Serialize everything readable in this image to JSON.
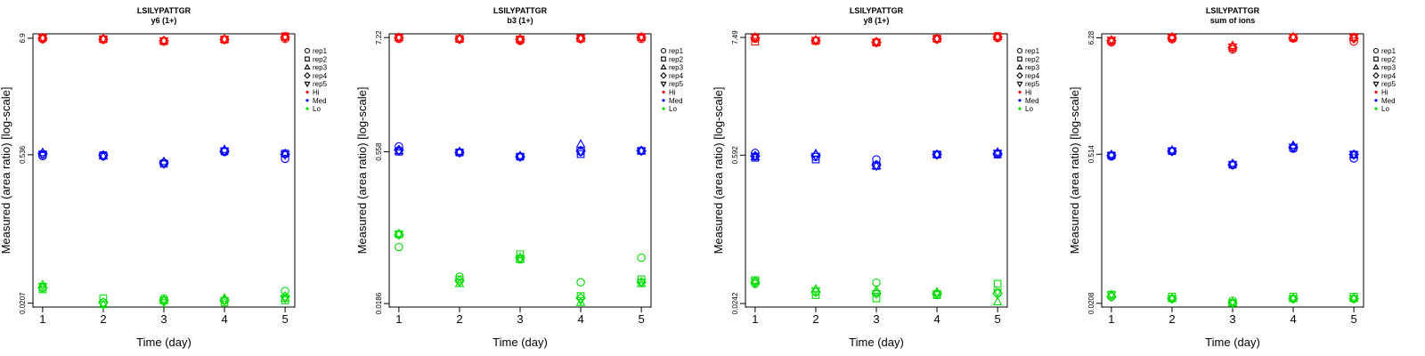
{
  "colors": {
    "Hi": "#ff0000",
    "Med": "#0000ff",
    "Lo": "#00dd00"
  },
  "legend": {
    "reps": [
      {
        "label": "rep1",
        "marker": "circle"
      },
      {
        "label": "rep2",
        "marker": "square"
      },
      {
        "label": "rep3",
        "marker": "triangle"
      },
      {
        "label": "rep4",
        "marker": "diamond"
      },
      {
        "label": "rep5",
        "marker": "triangle-down"
      }
    ],
    "levels": [
      {
        "label": "Hi",
        "color": "#ff0000"
      },
      {
        "label": "Med",
        "color": "#0000ff"
      },
      {
        "label": "Lo",
        "color": "#00dd00"
      }
    ]
  },
  "chart_data": [
    {
      "type": "scatter",
      "title": "LSILYPATTGR",
      "subtitle": "y6 (1+)",
      "xlabel": "Time (day)",
      "ylabel": "Measured (area ratio) [log-scale]",
      "x": [
        1,
        2,
        3,
        4,
        5
      ],
      "xticks": [
        "1",
        "2",
        "3",
        "4",
        "5"
      ],
      "ylim": [
        0.019,
        7.6
      ],
      "yticks": [
        0.0207,
        0.536,
        6.9
      ],
      "ytick_labels": [
        "0.0207",
        "0.536",
        "6.9"
      ],
      "series": [
        {
          "level": "Hi",
          "rep": "rep1",
          "values": [
            6.75,
            6.7,
            6.5,
            6.7,
            6.8
          ]
        },
        {
          "level": "Hi",
          "rep": "rep2",
          "values": [
            7.0,
            6.75,
            6.45,
            6.7,
            7.2
          ]
        },
        {
          "level": "Hi",
          "rep": "rep3",
          "values": [
            6.95,
            6.8,
            6.55,
            6.75,
            7.1
          ]
        },
        {
          "level": "Hi",
          "rep": "rep4",
          "values": [
            6.9,
            6.75,
            6.5,
            6.7,
            7.05
          ]
        },
        {
          "level": "Hi",
          "rep": "rep5",
          "values": [
            6.95,
            6.8,
            6.5,
            6.75,
            7.1
          ]
        },
        {
          "level": "Med",
          "rep": "rep1",
          "values": [
            0.52,
            0.52,
            0.45,
            0.57,
            0.49
          ]
        },
        {
          "level": "Med",
          "rep": "rep2",
          "values": [
            0.54,
            0.53,
            0.44,
            0.58,
            0.55
          ]
        },
        {
          "level": "Med",
          "rep": "rep3",
          "values": [
            0.56,
            0.52,
            0.46,
            0.6,
            0.55
          ]
        },
        {
          "level": "Med",
          "rep": "rep4",
          "values": [
            0.55,
            0.53,
            0.45,
            0.58,
            0.54
          ]
        },
        {
          "level": "Med",
          "rep": "rep5",
          "values": [
            0.54,
            0.52,
            0.44,
            0.58,
            0.54
          ]
        },
        {
          "level": "Lo",
          "rep": "rep1",
          "values": [
            0.029,
            0.021,
            0.023,
            0.022,
            0.027
          ]
        },
        {
          "level": "Lo",
          "rep": "rep2",
          "values": [
            0.028,
            0.023,
            0.022,
            0.021,
            0.022
          ]
        },
        {
          "level": "Lo",
          "rep": "rep3",
          "values": [
            0.031,
            0.02,
            0.022,
            0.023,
            0.023
          ]
        },
        {
          "level": "Lo",
          "rep": "rep4",
          "values": [
            0.029,
            0.021,
            0.022,
            0.022,
            0.024
          ]
        },
        {
          "level": "Lo",
          "rep": "rep5",
          "values": [
            0.03,
            0.02,
            0.021,
            0.022,
            0.023
          ]
        }
      ]
    },
    {
      "type": "scatter",
      "title": "LSILYPATTGR",
      "subtitle": "b3 (1+)",
      "xlabel": "Time (day)",
      "ylabel": "Measured (area ratio) [log-scale]",
      "x": [
        1,
        2,
        3,
        4,
        5
      ],
      "xticks": [
        "1",
        "2",
        "3",
        "4",
        "5"
      ],
      "ylim": [
        0.0172,
        7.85
      ],
      "yticks": [
        0.0186,
        0.558,
        7.22
      ],
      "ytick_labels": [
        "0.0186",
        "0.558",
        "7.22"
      ],
      "series": [
        {
          "level": "Hi",
          "rep": "rep1",
          "values": [
            7.0,
            6.95,
            6.7,
            7.0,
            7.0
          ]
        },
        {
          "level": "Hi",
          "rep": "rep2",
          "values": [
            7.2,
            7.0,
            6.9,
            7.1,
            7.3
          ]
        },
        {
          "level": "Hi",
          "rep": "rep3",
          "values": [
            7.25,
            7.05,
            7.0,
            7.1,
            7.3
          ]
        },
        {
          "level": "Hi",
          "rep": "rep4",
          "values": [
            7.2,
            7.0,
            6.9,
            7.05,
            7.25
          ]
        },
        {
          "level": "Hi",
          "rep": "rep5",
          "values": [
            7.25,
            7.05,
            6.95,
            7.1,
            7.3
          ]
        },
        {
          "level": "Med",
          "rep": "rep1",
          "values": [
            0.63,
            0.55,
            0.5,
            0.56,
            0.57
          ]
        },
        {
          "level": "Med",
          "rep": "rep2",
          "values": [
            0.56,
            0.55,
            0.5,
            0.53,
            0.57
          ]
        },
        {
          "level": "Med",
          "rep": "rep3",
          "values": [
            0.57,
            0.56,
            0.51,
            0.66,
            0.57
          ]
        },
        {
          "level": "Med",
          "rep": "rep4",
          "values": [
            0.58,
            0.55,
            0.5,
            0.57,
            0.57
          ]
        },
        {
          "level": "Med",
          "rep": "rep5",
          "values": [
            0.57,
            0.55,
            0.5,
            0.56,
            0.57
          ]
        },
        {
          "level": "Lo",
          "rep": "rep1",
          "values": [
            0.066,
            0.034,
            0.05,
            0.03,
            0.052
          ]
        },
        {
          "level": "Lo",
          "rep": "rep2",
          "values": [
            0.088,
            0.032,
            0.056,
            0.022,
            0.032
          ]
        },
        {
          "level": "Lo",
          "rep": "rep3",
          "values": [
            0.089,
            0.029,
            0.05,
            0.019,
            0.029
          ]
        },
        {
          "level": "Lo",
          "rep": "rep4",
          "values": [
            0.087,
            0.031,
            0.052,
            0.021,
            0.03
          ]
        },
        {
          "level": "Lo",
          "rep": "rep5",
          "values": [
            0.088,
            0.03,
            0.051,
            0.02,
            0.03
          ]
        }
      ]
    },
    {
      "type": "scatter",
      "title": "LSILYPATTGR",
      "subtitle": "y8 (1+)",
      "xlabel": "Time (day)",
      "ylabel": "Measured (area ratio) [log-scale]",
      "x": [
        1,
        2,
        3,
        4,
        5
      ],
      "xticks": [
        "1",
        "2",
        "3",
        "4",
        "5"
      ],
      "ylim": [
        0.0224,
        8.1
      ],
      "yticks": [
        0.0242,
        0.592,
        7.49
      ],
      "ytick_labels": [
        "0.0242",
        "0.592",
        "7.49"
      ],
      "series": [
        {
          "level": "Hi",
          "rep": "rep1",
          "values": [
            7.3,
            7.0,
            6.8,
            7.2,
            7.4
          ]
        },
        {
          "level": "Hi",
          "rep": "rep2",
          "values": [
            6.85,
            6.95,
            6.7,
            7.3,
            7.7
          ]
        },
        {
          "level": "Hi",
          "rep": "rep3",
          "values": [
            7.55,
            7.1,
            6.8,
            7.3,
            7.6
          ]
        },
        {
          "level": "Hi",
          "rep": "rep4",
          "values": [
            7.4,
            7.0,
            6.75,
            7.25,
            7.55
          ]
        },
        {
          "level": "Hi",
          "rep": "rep5",
          "values": [
            7.5,
            7.05,
            6.8,
            7.3,
            7.6
          ]
        },
        {
          "level": "Med",
          "rep": "rep1",
          "values": [
            0.62,
            0.57,
            0.54,
            0.6,
            0.61
          ]
        },
        {
          "level": "Med",
          "rep": "rep2",
          "values": [
            0.56,
            0.54,
            0.47,
            0.6,
            0.6
          ]
        },
        {
          "level": "Med",
          "rep": "rep3",
          "values": [
            0.57,
            0.61,
            0.47,
            0.6,
            0.63
          ]
        },
        {
          "level": "Med",
          "rep": "rep4",
          "values": [
            0.58,
            0.59,
            0.48,
            0.6,
            0.61
          ]
        },
        {
          "level": "Med",
          "rep": "rep5",
          "values": [
            0.58,
            0.58,
            0.47,
            0.6,
            0.62
          ]
        },
        {
          "level": "Lo",
          "rep": "rep1",
          "values": [
            0.037,
            0.031,
            0.038,
            0.029,
            0.03
          ]
        },
        {
          "level": "Lo",
          "rep": "rep2",
          "values": [
            0.04,
            0.029,
            0.027,
            0.029,
            0.037
          ]
        },
        {
          "level": "Lo",
          "rep": "rep3",
          "values": [
            0.039,
            0.033,
            0.032,
            0.031,
            0.025
          ]
        },
        {
          "level": "Lo",
          "rep": "rep4",
          "values": [
            0.038,
            0.031,
            0.03,
            0.03,
            0.03
          ]
        },
        {
          "level": "Lo",
          "rep": "rep5",
          "values": [
            0.039,
            0.032,
            0.03,
            0.03,
            0.031
          ]
        }
      ]
    },
    {
      "type": "scatter",
      "title": "LSILYPATTGR",
      "subtitle": "sum of ions",
      "xlabel": "Time (day)",
      "ylabel": "Measured (area ratio) [log-scale]",
      "x": [
        1,
        2,
        3,
        4,
        5
      ],
      "xticks": [
        "1",
        "2",
        "3",
        "4",
        "5"
      ],
      "ylim": [
        0.0192,
        6.85
      ],
      "yticks": [
        0.0208,
        0.514,
        6.28
      ],
      "ytick_labels": [
        "0.0208",
        "0.514",
        "6.28"
      ],
      "series": [
        {
          "level": "Hi",
          "rep": "rep1",
          "values": [
            5.7,
            6.1,
            4.9,
            6.2,
            5.8
          ]
        },
        {
          "level": "Hi",
          "rep": "rep2",
          "values": [
            5.9,
            6.3,
            5.1,
            6.3,
            6.4
          ]
        },
        {
          "level": "Hi",
          "rep": "rep3",
          "values": [
            6.0,
            6.4,
            5.3,
            6.4,
            6.3
          ]
        },
        {
          "level": "Hi",
          "rep": "rep4",
          "values": [
            5.9,
            6.3,
            5.1,
            6.3,
            6.2
          ]
        },
        {
          "level": "Hi",
          "rep": "rep5",
          "values": [
            6.0,
            6.3,
            5.2,
            6.4,
            6.3
          ]
        },
        {
          "level": "Med",
          "rep": "rep1",
          "values": [
            0.49,
            0.55,
            0.41,
            0.58,
            0.47
          ]
        },
        {
          "level": "Med",
          "rep": "rep2",
          "values": [
            0.5,
            0.55,
            0.41,
            0.59,
            0.51
          ]
        },
        {
          "level": "Med",
          "rep": "rep3",
          "values": [
            0.51,
            0.56,
            0.42,
            0.62,
            0.51
          ]
        },
        {
          "level": "Med",
          "rep": "rep4",
          "values": [
            0.5,
            0.55,
            0.41,
            0.6,
            0.51
          ]
        },
        {
          "level": "Med",
          "rep": "rep5",
          "values": [
            0.5,
            0.55,
            0.41,
            0.6,
            0.51
          ]
        },
        {
          "level": "Lo",
          "rep": "rep1",
          "values": [
            0.024,
            0.023,
            0.022,
            0.023,
            0.023
          ]
        },
        {
          "level": "Lo",
          "rep": "rep2",
          "values": [
            0.025,
            0.024,
            0.021,
            0.024,
            0.024
          ]
        },
        {
          "level": "Lo",
          "rep": "rep3",
          "values": [
            0.025,
            0.023,
            0.021,
            0.023,
            0.023
          ]
        },
        {
          "level": "Lo",
          "rep": "rep4",
          "values": [
            0.024,
            0.023,
            0.021,
            0.023,
            0.023
          ]
        },
        {
          "level": "Lo",
          "rep": "rep5",
          "values": [
            0.025,
            0.023,
            0.021,
            0.023,
            0.023
          ]
        }
      ]
    }
  ]
}
